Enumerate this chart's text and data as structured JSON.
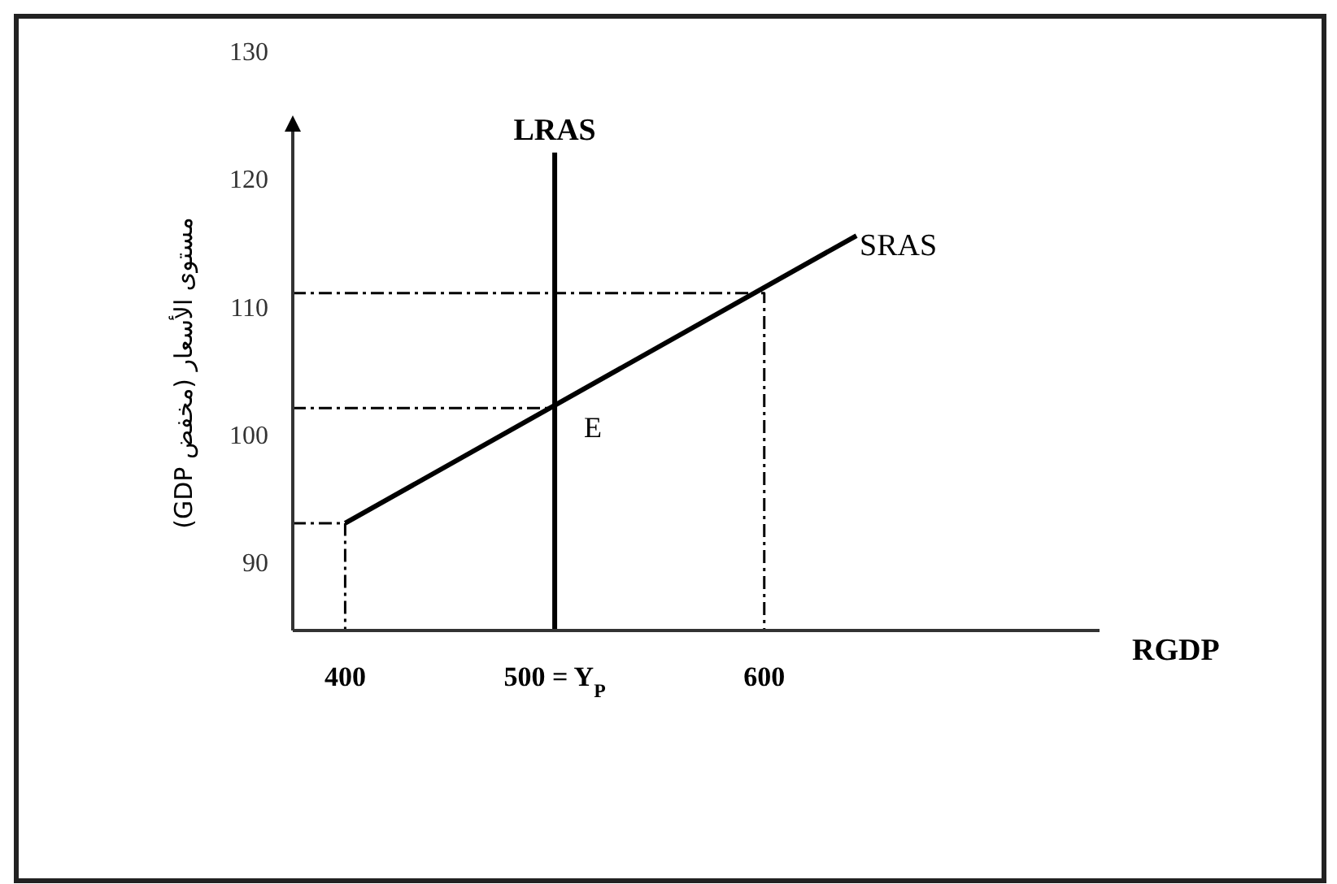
{
  "chart_data": {
    "type": "line",
    "xlabel": "RGDP",
    "ylabel": "مستوى الأسعار (مخفض GDP)",
    "xlim": [
      375,
      760
    ],
    "ylim": [
      84.6,
      130
    ],
    "xticks": [
      400,
      {
        "value": 500,
        "label": "500 = Y$_{P}$"
      },
      600
    ],
    "yticks": [
      90,
      100,
      110,
      120,
      130
    ],
    "grid": false,
    "series": [
      {
        "name": "SRAS",
        "color": "#000000",
        "x": [
          400,
          644
        ],
        "values": [
          93,
          115.5
        ]
      },
      {
        "name": "LRAS",
        "color": "#000000",
        "x": [
          500,
          500
        ],
        "values": [
          84.6,
          122
        ]
      },
      {
        "color": "#000000",
        "line_style": "dashed",
        "x": [
          375,
          600,
          600
        ],
        "values": [
          111,
          111,
          84.6
        ]
      },
      {
        "color": "#000000",
        "line_style": "dashed",
        "x": [
          375,
          500
        ],
        "values": [
          102,
          102
        ]
      },
      {
        "color": "#000000",
        "line_style": "dashed",
        "x": [
          375,
          400,
          400
        ],
        "values": [
          93,
          93,
          84.6
        ]
      }
    ],
    "annotations": [
      {
        "text": "E",
        "x": 500,
        "y": 102
      }
    ]
  }
}
